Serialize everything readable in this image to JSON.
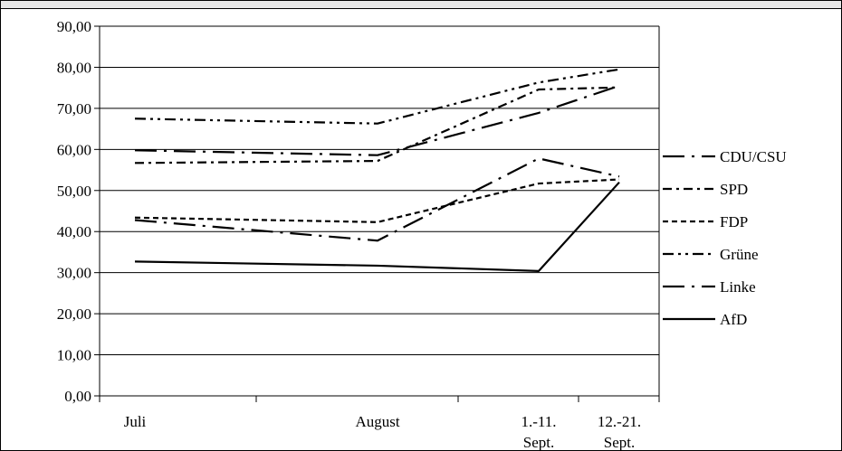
{
  "chart_data": {
    "type": "line",
    "title": "",
    "xlabel": "",
    "ylabel": "",
    "ylim": [
      0,
      90
    ],
    "y_ticks": [
      "0,00",
      "10,00",
      "20,00",
      "30,00",
      "40,00",
      "50,00",
      "60,00",
      "70,00",
      "80,00",
      "90,00"
    ],
    "categories": [
      {
        "line1": "Juli",
        "line2": ""
      },
      {
        "line1": "August",
        "line2": ""
      },
      {
        "line1": "1.-11.",
        "line2": "Sept."
      },
      {
        "line1": "12.-21.",
        "line2": "Sept."
      }
    ],
    "grid": "horizontal",
    "legend_position": "right",
    "series": [
      {
        "name": "CDU/CSU",
        "values": [
          59.8,
          58.6,
          68.9,
          75.5
        ],
        "dash": "long-dash-dot"
      },
      {
        "name": "SPD",
        "values": [
          56.7,
          57.2,
          74.6,
          75.1
        ],
        "dash": "dash-dot"
      },
      {
        "name": "FDP",
        "values": [
          43.4,
          42.3,
          51.7,
          52.7
        ],
        "dash": "short-dash"
      },
      {
        "name": "Grüne",
        "values": [
          67.5,
          66.3,
          76.3,
          79.5
        ],
        "dash": "dash-dot-dot"
      },
      {
        "name": "Linke",
        "values": [
          42.8,
          37.8,
          57.8,
          53.4
        ],
        "dash": "long-dash-dot"
      },
      {
        "name": "AfD",
        "values": [
          32.7,
          31.7,
          30.4,
          52.0
        ],
        "dash": "solid"
      }
    ]
  }
}
